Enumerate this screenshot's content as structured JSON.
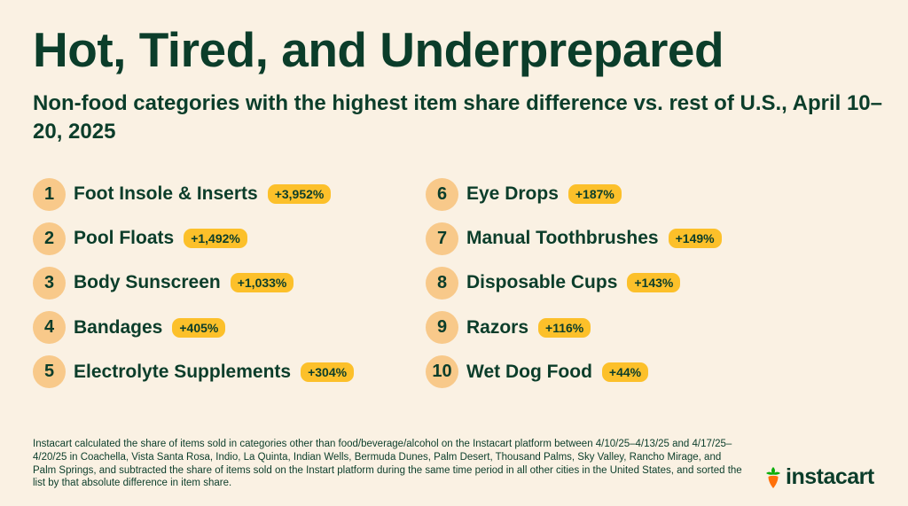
{
  "title": "Hot, Tired, and Underprepared",
  "subtitle": "Non-food categories with the highest item share difference vs. rest of U.S., April 10–20, 2025",
  "left_items": [
    {
      "rank": "1",
      "name": "Foot Insole & Inserts",
      "change": "+3,952%"
    },
    {
      "rank": "2",
      "name": "Pool Floats",
      "change": "+1,492%"
    },
    {
      "rank": "3",
      "name": "Body Sunscreen",
      "change": "+1,033%"
    },
    {
      "rank": "4",
      "name": "Bandages",
      "change": "+405%"
    },
    {
      "rank": "5",
      "name": "Electrolyte Supplements",
      "change": "+304%"
    }
  ],
  "right_items": [
    {
      "rank": "6",
      "name": "Eye Drops",
      "change": "+187%"
    },
    {
      "rank": "7",
      "name": "Manual Toothbrushes",
      "change": "+149%"
    },
    {
      "rank": "8",
      "name": "Disposable Cups",
      "change": "+143%"
    },
    {
      "rank": "9",
      "name": "Razors",
      "change": "+116%"
    },
    {
      "rank": "10",
      "name": "Wet Dog Food",
      "change": "+44%"
    }
  ],
  "footnote": "Instacart calculated the share of items sold in categories other than food/beverage/alcohol on the Instacart platform between 4/10/25–4/13/25 and 4/17/25–4/20/25 in Coachella, Vista Santa Rosa, Indio, La Quinta, Indian Wells, Bermuda Dunes, Palm Desert, Thousand Palms, Sky Valley, Rancho Mirage, and Palm Springs, and subtracted the share of items sold on the Instart platform during the same time period in all other cities in the United States, and sorted the list by that absolute difference in item share.",
  "logo": {
    "icon": "carrot-icon",
    "text": "instacart"
  },
  "colors": {
    "background": "#faf1e3",
    "text": "#0b3d2a",
    "rank_circle": "#f8c98a",
    "badge": "#fcc02a",
    "carrot_orange": "#ff7009",
    "carrot_green": "#0aad0a"
  }
}
